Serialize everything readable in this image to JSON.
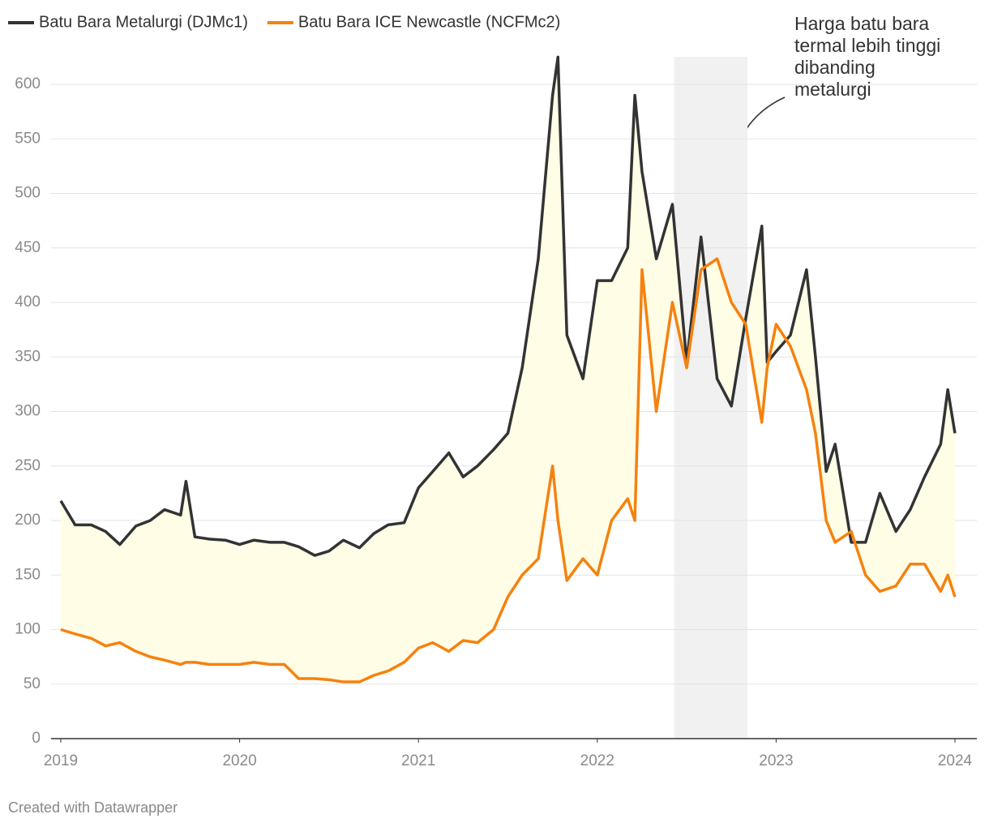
{
  "chart_data": {
    "type": "line",
    "x": [
      2019.0,
      2019.08,
      2019.17,
      2019.25,
      2019.33,
      2019.42,
      2019.5,
      2019.58,
      2019.67,
      2019.7,
      2019.75,
      2019.83,
      2019.92,
      2020.0,
      2020.08,
      2020.17,
      2020.25,
      2020.33,
      2020.42,
      2020.5,
      2020.58,
      2020.67,
      2020.75,
      2020.83,
      2020.92,
      2021.0,
      2021.08,
      2021.17,
      2021.25,
      2021.33,
      2021.42,
      2021.5,
      2021.58,
      2021.67,
      2021.75,
      2021.78,
      2021.83,
      2021.92,
      2022.0,
      2022.08,
      2022.17,
      2022.21,
      2022.25,
      2022.33,
      2022.42,
      2022.5,
      2022.58,
      2022.67,
      2022.75,
      2022.83,
      2022.92,
      2022.95,
      2023.0,
      2023.08,
      2023.17,
      2023.22,
      2023.28,
      2023.33,
      2023.42,
      2023.5,
      2023.58,
      2023.67,
      2023.75,
      2023.83,
      2023.92,
      2023.96,
      2024.0
    ],
    "series": [
      {
        "name": "Batu Bara Metalurgi (DJMc1)",
        "color": "#333333",
        "values": [
          218,
          196,
          196,
          190,
          178,
          195,
          200,
          210,
          205,
          236,
          185,
          183,
          182,
          178,
          182,
          180,
          180,
          176,
          168,
          172,
          182,
          175,
          188,
          196,
          198,
          230,
          245,
          262,
          240,
          250,
          265,
          280,
          340,
          440,
          590,
          625,
          370,
          330,
          420,
          420,
          450,
          590,
          520,
          440,
          490,
          345,
          460,
          330,
          305,
          385,
          470,
          345,
          355,
          370,
          430,
          350,
          245,
          270,
          180,
          180,
          225,
          190,
          210,
          240,
          270,
          320,
          280
        ]
      },
      {
        "name": "Batu Bara ICE Newcastle (NCFMc2)",
        "color": "#f5820f",
        "values": [
          100,
          96,
          92,
          85,
          88,
          80,
          75,
          72,
          68,
          70,
          70,
          68,
          68,
          68,
          70,
          68,
          68,
          55,
          55,
          54,
          52,
          52,
          58,
          62,
          70,
          83,
          88,
          80,
          90,
          88,
          100,
          130,
          150,
          165,
          250,
          200,
          145,
          165,
          150,
          200,
          220,
          200,
          430,
          300,
          400,
          340,
          430,
          440,
          400,
          380,
          290,
          340,
          380,
          360,
          320,
          280,
          200,
          180,
          190,
          150,
          135,
          140,
          160,
          160,
          135,
          150,
          130
        ]
      }
    ],
    "xlim": [
      2019,
      2024
    ],
    "xticks": [
      2019,
      2020,
      2021,
      2022,
      2023,
      2024
    ],
    "ylim": [
      0,
      600
    ],
    "yticks": [
      0,
      50,
      100,
      150,
      200,
      250,
      300,
      350,
      400,
      450,
      500,
      550,
      600
    ],
    "grid": true,
    "fill_between_color": "#fffde6",
    "highlight_range": [
      2022.43,
      2022.84
    ],
    "highlight_color": "#f1f1f1",
    "annotation": [
      "Harga batu bara",
      "termal lebih tinggi",
      "dibanding",
      "metalurgi"
    ],
    "credit": "Created with Datawrapper"
  }
}
